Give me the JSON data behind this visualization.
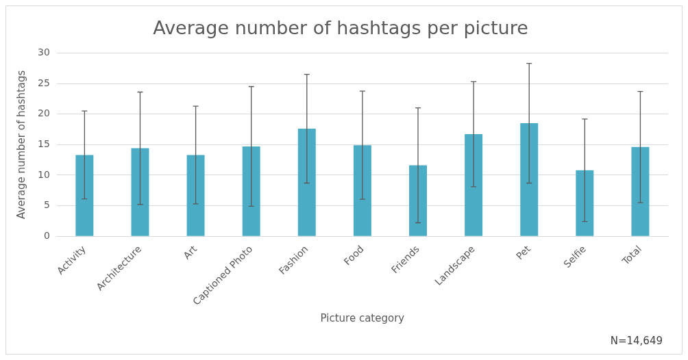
{
  "chart_data": {
    "type": "bar",
    "title": "Average number of hashtags per picture",
    "xlabel": "Picture category",
    "ylabel": "Average number of hashtags",
    "categories": [
      "Activity",
      "Architecture",
      "Art",
      "Captioned Photo",
      "Fashion",
      "Food",
      "Friends",
      "Landscape",
      "Pet",
      "Selfie",
      "Total"
    ],
    "values": [
      13.3,
      14.4,
      13.3,
      14.7,
      17.6,
      14.9,
      11.6,
      16.7,
      18.5,
      10.8,
      14.6
    ],
    "errors": [
      7.2,
      9.2,
      8.0,
      9.8,
      8.9,
      8.85,
      9.4,
      8.6,
      9.8,
      8.4,
      9.1
    ],
    "color": "#4bacc6",
    "ylim": [
      0,
      30
    ],
    "yticks": [
      0,
      5,
      10,
      15,
      20,
      25,
      30
    ],
    "grid": "y",
    "legend": false,
    "annotations": [
      "N=14,649"
    ]
  }
}
